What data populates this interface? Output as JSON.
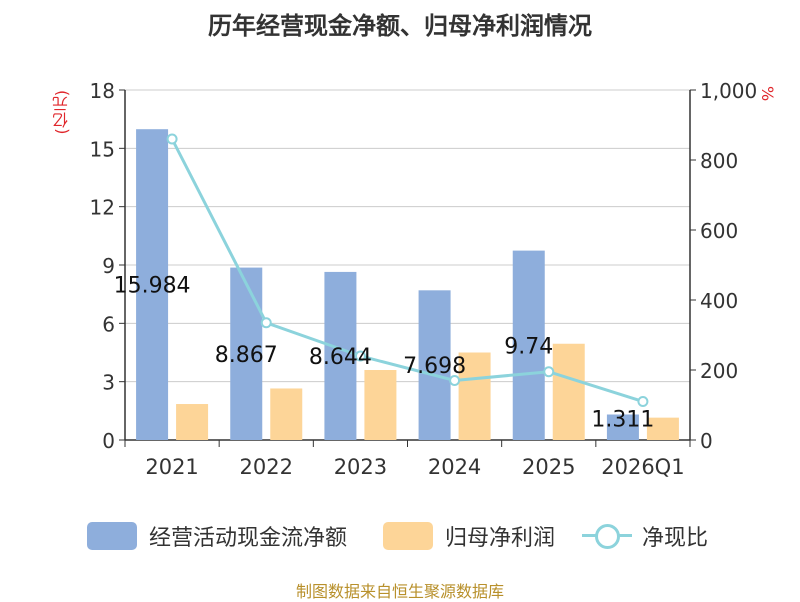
{
  "chart_data": {
    "type": "bar",
    "title": "历年经营现金净额、归母净利润情况",
    "ylabel_left": "(亿元)",
    "ylabel_right": "%",
    "categories": [
      "2021",
      "2022",
      "2023",
      "2024",
      "2025",
      "2026Q1"
    ],
    "series": [
      {
        "name": "经营活动现金流净额",
        "axis": "left",
        "type": "bar",
        "color": "#8eaedc",
        "values": [
          15.984,
          8.867,
          8.644,
          7.698,
          9.74,
          1.311
        ],
        "labels": [
          "15.984",
          "8.867",
          "8.644",
          "7.698",
          "9.74",
          "1.311"
        ]
      },
      {
        "name": "归母净利润",
        "axis": "left",
        "type": "bar",
        "color": "#fdd598",
        "values": [
          1.85,
          2.65,
          3.6,
          4.5,
          4.95,
          1.15
        ]
      },
      {
        "name": "净现比",
        "axis": "right",
        "type": "line",
        "color": "#8cd3dc",
        "values": [
          860,
          335,
          240,
          170,
          195,
          110
        ]
      }
    ],
    "ylim_left": [
      0,
      18
    ],
    "yticks_left": [
      "0",
      "3",
      "6",
      "9",
      "12",
      "15",
      "18"
    ],
    "ylim_right": [
      0,
      1000
    ],
    "yticks_right": [
      "0",
      "200",
      "400",
      "600",
      "800",
      "1,000"
    ],
    "grid": true,
    "legend_position": "bottom"
  },
  "source": "制图数据来自恒生聚源数据库"
}
